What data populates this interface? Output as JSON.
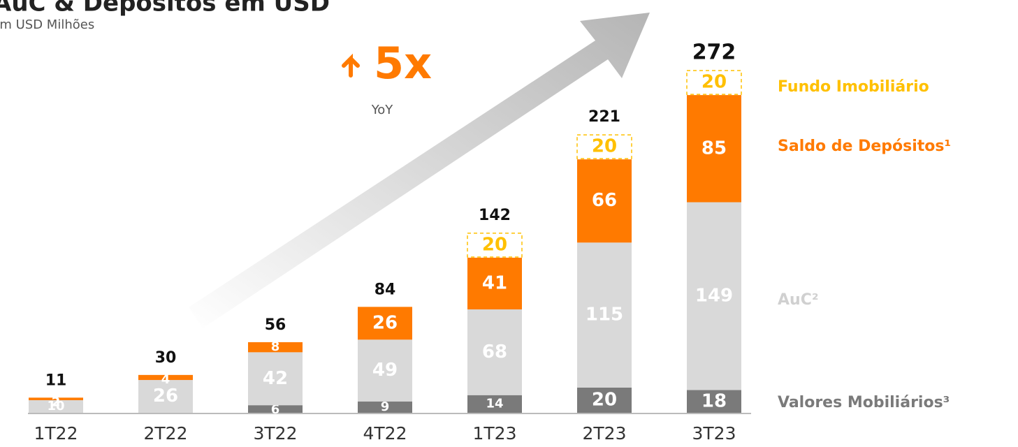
{
  "chart_data": {
    "type": "stacked_bar",
    "title": "AuC & Depósitos em USD",
    "subtitle": "Em USD Milhões",
    "annotation": "5x",
    "annotation_note": "YoY",
    "categories": [
      "1T22",
      "2T22",
      "3T22",
      "4T22",
      "1T23",
      "2T23",
      "3T23"
    ],
    "series": [
      {
        "name": "Valores Mobiliários³",
        "color": "#7a7a7a",
        "values": [
          null,
          null,
          6,
          9,
          14,
          20,
          18
        ]
      },
      {
        "name": "AuC²",
        "color": "#d9d9d9",
        "values": [
          10,
          26,
          42,
          49,
          68,
          115,
          149
        ]
      },
      {
        "name": "Saldo de Depósitos¹",
        "color": "#ff7a00",
        "values": [
          2,
          4,
          8,
          26,
          41,
          66,
          85
        ]
      },
      {
        "name": "Fundo Imobiliário",
        "color": "#ffc000",
        "dashed": true,
        "values": [
          null,
          null,
          null,
          null,
          20,
          20,
          20
        ]
      }
    ],
    "totals": [
      11,
      30,
      56,
      84,
      142,
      221,
      272
    ]
  }
}
